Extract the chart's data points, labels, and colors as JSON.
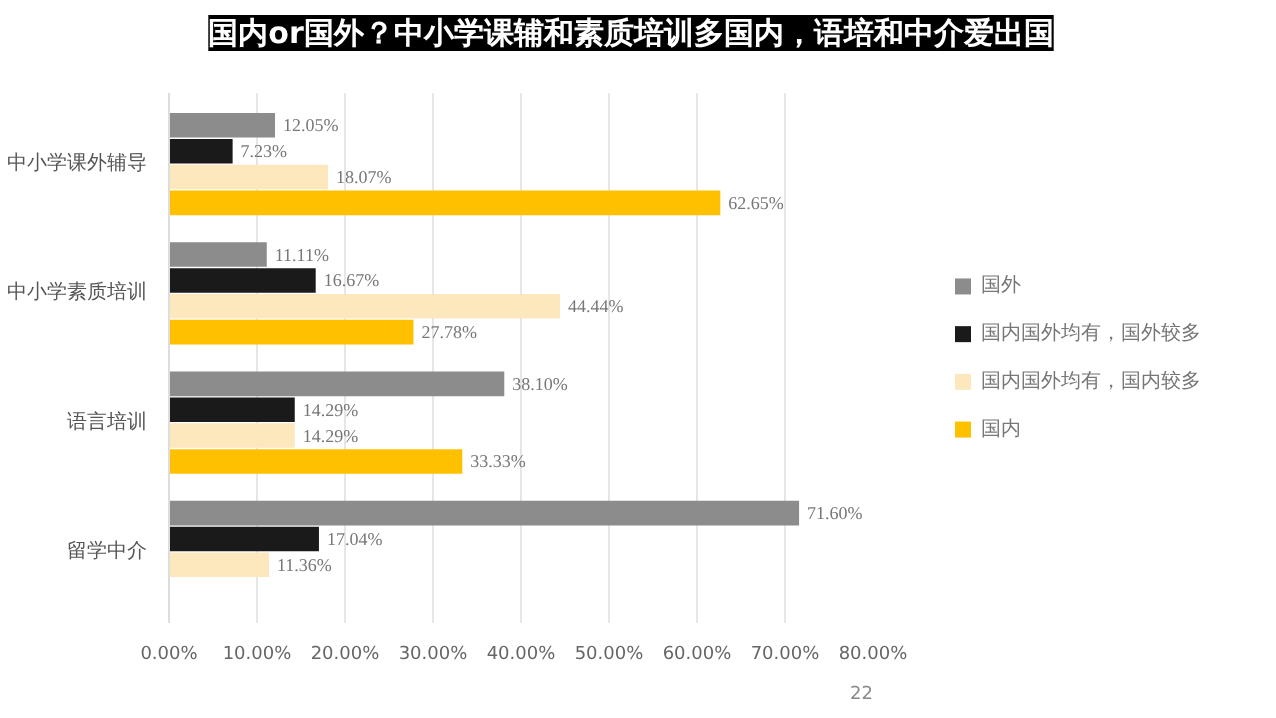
{
  "chart_data": {
    "type": "bar",
    "orientation": "horizontal",
    "title": "国内or国外？中小学课辅和素质培训多国内，语培和中介爱出国",
    "categories": [
      "中小学课外辅导",
      "中小学素质培训",
      "语言培训",
      "留学中介"
    ],
    "series": [
      {
        "name": "国外",
        "color": "#8c8c8c",
        "values": [
          12.05,
          11.11,
          38.1,
          71.6
        ],
        "value_labels": [
          "12.05%",
          "11.11%",
          "38.10%",
          "71.60%"
        ]
      },
      {
        "name": "国内国外均有，国外较多",
        "color": "#1a1a1a",
        "values": [
          7.23,
          16.67,
          14.29,
          17.04
        ],
        "value_labels": [
          "7.23%",
          "16.67%",
          "14.29%",
          "17.04%"
        ]
      },
      {
        "name": "国内国外均有，国内较多",
        "color": "#fde7bd",
        "values": [
          18.07,
          44.44,
          14.29,
          11.36
        ],
        "value_labels": [
          "18.07%",
          "44.44%",
          "14.29%",
          "11.36%"
        ]
      },
      {
        "name": "国内",
        "color": "#ffc000",
        "values": [
          62.65,
          27.78,
          33.33,
          null
        ],
        "value_labels": [
          "62.65%",
          "27.78%",
          "33.33%",
          null
        ]
      }
    ],
    "xlim": [
      0,
      80
    ],
    "xticks": [
      {
        "value": 0,
        "label": "0.00%"
      },
      {
        "value": 10,
        "label": "10.00%"
      },
      {
        "value": 20,
        "label": "20.00%"
      },
      {
        "value": 30,
        "label": "30.00%"
      },
      {
        "value": 40,
        "label": "40.00%"
      },
      {
        "value": 50,
        "label": "50.00%"
      },
      {
        "value": 60,
        "label": "60.00%"
      },
      {
        "value": 70,
        "label": "70.00%"
      },
      {
        "value": 80,
        "label": "80.00%"
      }
    ],
    "grid": "x",
    "legend": "right",
    "annotations": [
      "22"
    ]
  }
}
